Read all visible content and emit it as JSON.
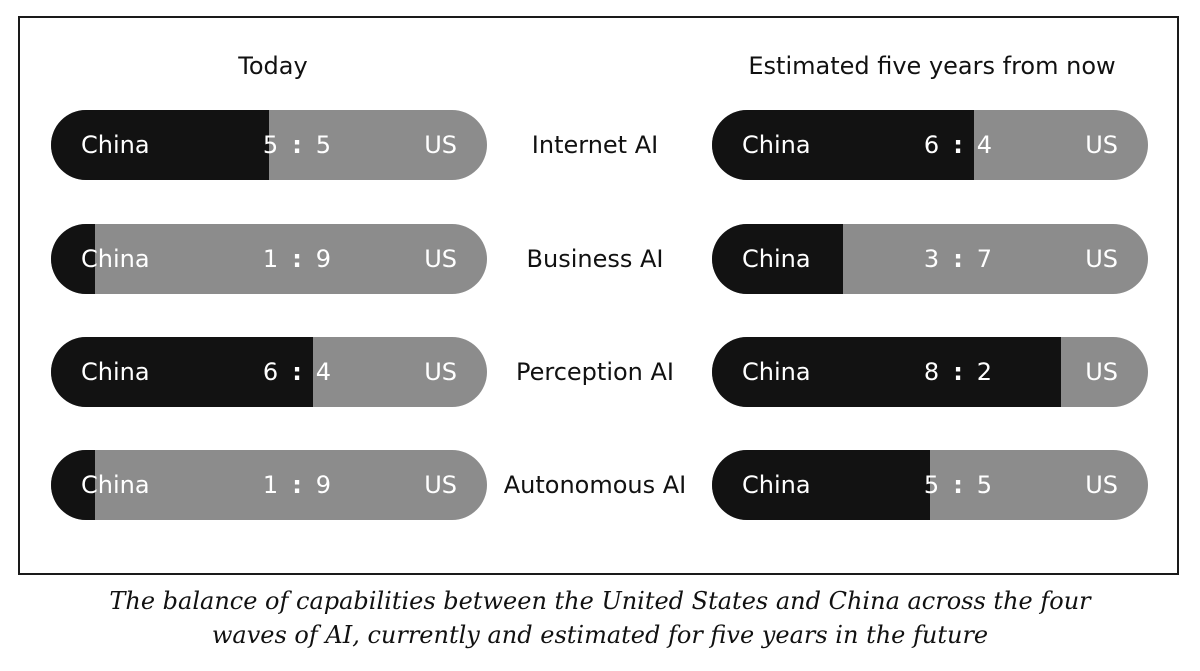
{
  "chart_data": {
    "type": "bar",
    "stacked": true,
    "orientation": "horizontal",
    "columns": [
      "Today",
      "Estimated five years from now"
    ],
    "categories": [
      "Internet AI",
      "Business AI",
      "Perception AI",
      "Autonomous  AI"
    ],
    "series_labels": {
      "left": "China",
      "right": "US"
    },
    "today": [
      {
        "china": 5,
        "us": 5
      },
      {
        "china": 1,
        "us": 9
      },
      {
        "china": 6,
        "us": 4
      },
      {
        "china": 1,
        "us": 9
      }
    ],
    "future": [
      {
        "china": 6,
        "us": 4
      },
      {
        "china": 3,
        "us": 7
      },
      {
        "china": 8,
        "us": 2
      },
      {
        "china": 5,
        "us": 5
      }
    ],
    "ratio_separator": ":",
    "colors": {
      "china": "#121212",
      "us": "#8c8c8c"
    },
    "caption_line1": "The balance of capabilities between the United States and China across the four",
    "caption_line2": "waves of AI, currently and estimated for five years in the future"
  }
}
